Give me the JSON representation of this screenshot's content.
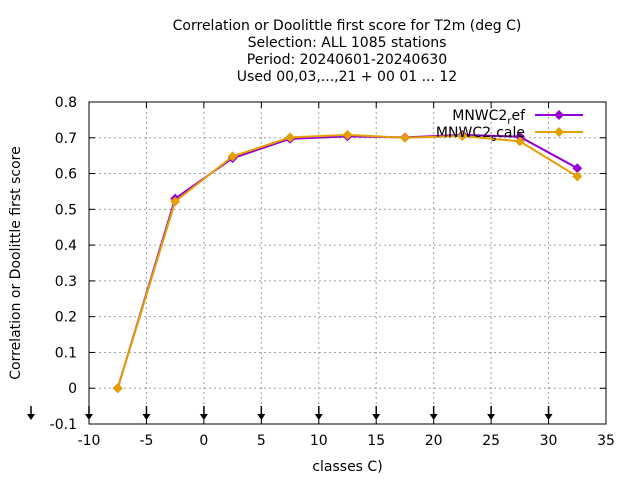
{
  "chart_data": {
    "type": "line",
    "title_lines": [
      "Correlation or Doolittle first score  for T2m (deg C)",
      "Selection: ALL   1085 stations",
      "Period: 20240601-20240630",
      "Used 00,03,...,21 + 00 01 ... 12"
    ],
    "xlabel": "classes C)",
    "ylabel": "Correlation or Doolittle first score",
    "xlim": [
      -10,
      35
    ],
    "ylim": [
      -0.1,
      0.8
    ],
    "xticks": [
      -10,
      -5,
      0,
      5,
      10,
      15,
      20,
      25,
      30,
      35
    ],
    "yticks": [
      -0.1,
      0,
      0.1,
      0.2,
      0.3,
      0.4,
      0.5,
      0.6,
      0.7,
      0.8
    ],
    "xtick_labels": [
      "-10",
      "-5",
      "0",
      "5",
      "10",
      "15",
      "20",
      "25",
      "30",
      "35"
    ],
    "ytick_labels": [
      "-0.1",
      "0",
      "0.1",
      "0.2",
      "0.3",
      "0.4",
      "0.5",
      "0.6",
      "0.7",
      "0.8"
    ],
    "grid": true,
    "legend_position": "top-right",
    "arrow_markers_x": [
      -10,
      -5,
      0,
      5,
      10,
      15,
      20,
      25,
      30
    ],
    "series": [
      {
        "legend_main": "MNWC2",
        "legend_sub": "r",
        "legend_tail": "ef",
        "color": "#9400d3",
        "x": [
          -7.5,
          -2.5,
          2.5,
          7.5,
          12.5,
          17.5,
          22.5,
          27.5,
          32.5
        ],
        "y": [
          0.0,
          0.53,
          0.643,
          0.697,
          0.704,
          0.701,
          0.708,
          0.703,
          0.615
        ]
      },
      {
        "legend_main": "MNWC2",
        "legend_sub": "s",
        "legend_tail": "cale",
        "color": "#e69f00",
        "x": [
          -7.5,
          -2.5,
          2.5,
          7.5,
          12.5,
          17.5,
          22.5,
          27.5,
          32.5
        ],
        "y": [
          0.0,
          0.522,
          0.648,
          0.701,
          0.708,
          0.7,
          0.705,
          0.69,
          0.592
        ]
      }
    ]
  }
}
